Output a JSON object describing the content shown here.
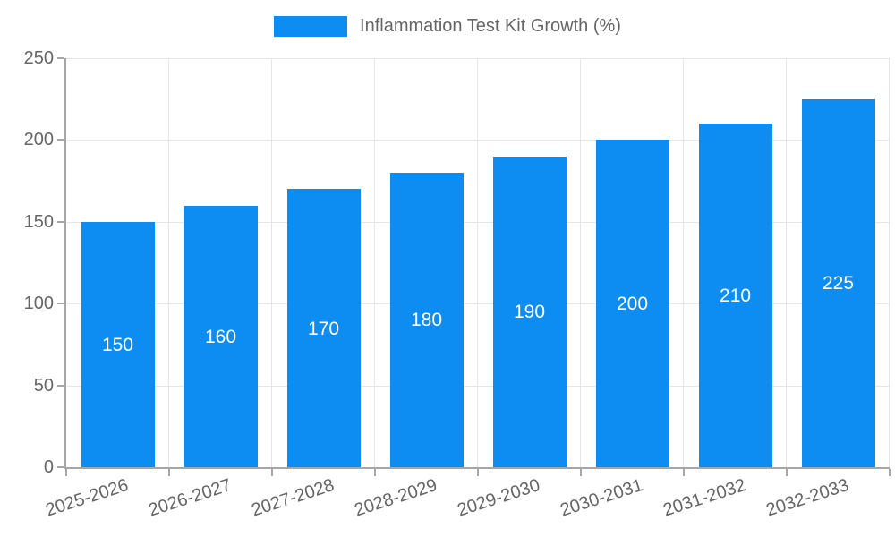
{
  "chart_data": {
    "type": "bar",
    "title": "Inflammation Test Kit Growth (%)",
    "categories": [
      "2025-2026",
      "2026-2027",
      "2027-2028",
      "2028-2029",
      "2029-2030",
      "2030-2031",
      "2031-2032",
      "2032-2033"
    ],
    "values": [
      150,
      160,
      170,
      180,
      190,
      200,
      210,
      225
    ],
    "value_labels": [
      "150",
      "160",
      "170",
      "180",
      "190",
      "200",
      "210",
      "225"
    ],
    "ylim": [
      0,
      250
    ],
    "yticks": [
      0,
      50,
      100,
      150,
      200,
      250
    ],
    "ytick_labels": [
      "0",
      "50",
      "100",
      "150",
      "200",
      "250"
    ],
    "grid": true,
    "legend_position": "top-center",
    "x_label_rotation_deg": -18,
    "colors": {
      "bar": "#0d8df2",
      "value_label": "#ffffff",
      "grid": "#e6e6e6",
      "axis": "#a6a6a6",
      "tick": "#a6a6a6",
      "tick_label": "#666666",
      "legend_text": "#666666",
      "background": "#ffffff"
    }
  }
}
